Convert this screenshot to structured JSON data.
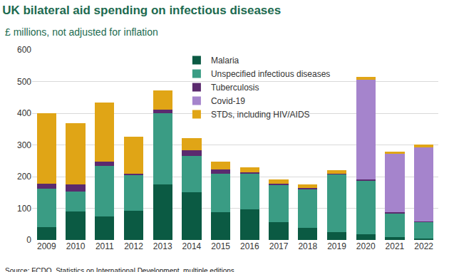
{
  "chart_data": {
    "type": "bar",
    "title": "UK bilateral aid spending on infectious diseases",
    "subtitle": "£ millions, not adjusted for inflation",
    "source": "Source: FCDO, Statistics on International Development, multiple editions",
    "categories": [
      "2009",
      "2010",
      "2011",
      "2012",
      "2013",
      "2014",
      "2015",
      "2016",
      "2017",
      "2018",
      "2019",
      "2020",
      "2021",
      "2022"
    ],
    "stacked": true,
    "grid": true,
    "legend": "top",
    "ylim": [
      0,
      600
    ],
    "yticks": [
      0,
      100,
      200,
      300,
      400,
      500,
      600
    ],
    "series": [
      {
        "name": "Malaria",
        "color": "#0b5a43",
        "values": [
          40,
          90,
          75,
          92,
          175,
          150,
          87,
          97,
          57,
          38,
          25,
          17,
          8,
          5
        ]
      },
      {
        "name": "Unspecified infectious diseases",
        "color": "#3a9c84",
        "values": [
          122,
          63,
          158,
          113,
          225,
          115,
          123,
          113,
          118,
          122,
          182,
          171,
          77,
          52
        ]
      },
      {
        "name": "Tuberculosis",
        "color": "#5b2a6e",
        "values": [
          16,
          22,
          15,
          5,
          12,
          18,
          13,
          3,
          3,
          3,
          3,
          2,
          2,
          1
        ]
      },
      {
        "name": "Covid-19",
        "color": "#a584cc",
        "values": [
          0,
          0,
          0,
          0,
          0,
          0,
          0,
          0,
          0,
          0,
          0,
          315,
          185,
          234
        ]
      },
      {
        "name": "STDs, including HIV/AIDS",
        "color": "#e0a516",
        "values": [
          222,
          193,
          185,
          115,
          61,
          39,
          24,
          17,
          12,
          12,
          10,
          10,
          6,
          10
        ]
      }
    ]
  }
}
